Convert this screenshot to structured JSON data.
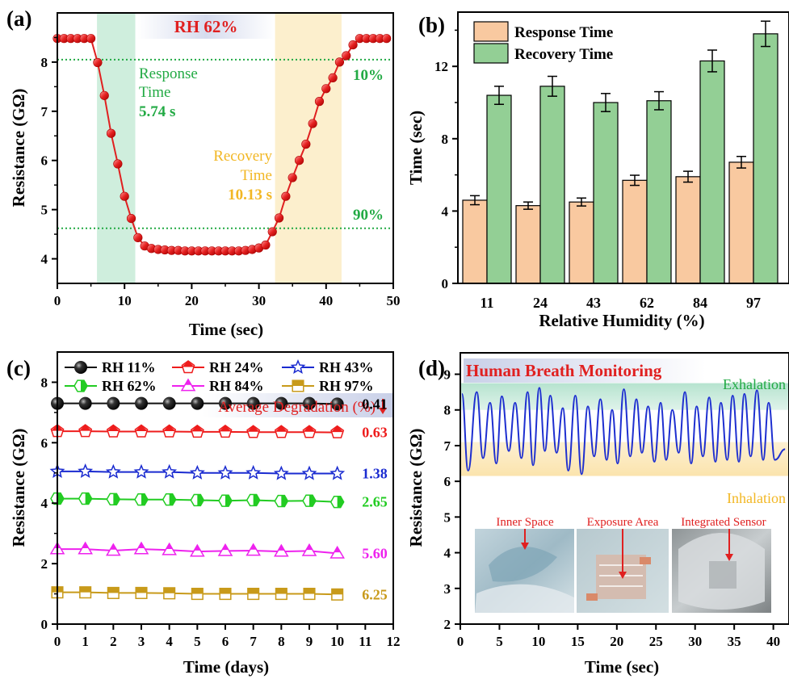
{
  "chart_data": [
    {
      "panel": "(a)",
      "type": "line",
      "xlabel": "Time (sec)",
      "ylabel": "Resistance (GΩ)",
      "xlim": [
        0,
        50
      ],
      "ylim": [
        3.5,
        9.0
      ],
      "x_ticks": [
        "0",
        "10",
        "20",
        "30",
        "40",
        "50"
      ],
      "y_ticks": [
        "4",
        "5",
        "6",
        "7",
        "8"
      ],
      "banner": "RH 62%",
      "response_label": "Response",
      "response_label2": "Time",
      "response_value": "5.74 s",
      "recovery_label": "Recovery",
      "recovery_label2": "Time",
      "recovery_value": "10.13 s",
      "level_10_label": "10%",
      "level_90_label": "90%",
      "level_10": 8.05,
      "level_90": 4.62,
      "response_band": [
        5.9,
        11.6
      ],
      "recovery_band": [
        32.4,
        42.3
      ],
      "series_color": "#e02020",
      "x": [
        0,
        1,
        2,
        3,
        4,
        5,
        6,
        7,
        8,
        9,
        10,
        11,
        12,
        13,
        14,
        15,
        16,
        17,
        18,
        19,
        20,
        21,
        22,
        23,
        24,
        25,
        26,
        27,
        28,
        29,
        30,
        31,
        32,
        33,
        34,
        35,
        36,
        37,
        38,
        39,
        40,
        41,
        42,
        43,
        44,
        45,
        46,
        47,
        48,
        49
      ],
      "y": [
        8.48,
        8.48,
        8.48,
        8.48,
        8.48,
        8.48,
        7.99,
        7.32,
        6.55,
        5.93,
        5.27,
        4.82,
        4.43,
        4.26,
        4.21,
        4.19,
        4.18,
        4.17,
        4.17,
        4.16,
        4.16,
        4.16,
        4.16,
        4.16,
        4.16,
        4.16,
        4.16,
        4.16,
        4.17,
        4.19,
        4.22,
        4.28,
        4.55,
        4.83,
        5.27,
        5.65,
        6.0,
        6.33,
        6.75,
        7.2,
        7.46,
        7.68,
        8.0,
        8.13,
        8.35,
        8.48,
        8.48,
        8.48,
        8.48,
        8.48
      ]
    },
    {
      "panel": "(b)",
      "type": "bar",
      "xlabel": "Relative Humidity (%)",
      "ylabel": "Time (sec)",
      "ylim": [
        0,
        15
      ],
      "y_ticks": [
        "0",
        "4",
        "8",
        "12"
      ],
      "categories": [
        "11",
        "24",
        "43",
        "62",
        "84",
        "97"
      ],
      "series": [
        {
          "name": "Response Time",
          "values": [
            4.6,
            4.3,
            4.5,
            5.7,
            5.9,
            6.7
          ],
          "errors": [
            0.25,
            0.2,
            0.22,
            0.28,
            0.3,
            0.32
          ],
          "color": "#f9c9a0"
        },
        {
          "name": "Recovery Time",
          "values": [
            10.4,
            10.9,
            10.0,
            10.1,
            12.3,
            13.8
          ],
          "errors": [
            0.5,
            0.55,
            0.5,
            0.5,
            0.6,
            0.7
          ],
          "color": "#93cf95"
        }
      ]
    },
    {
      "panel": "(c)",
      "type": "line",
      "xlabel": "Time (days)",
      "ylabel": "Resistance (GΩ)",
      "xlim": [
        0,
        12
      ],
      "ylim": [
        0,
        9.0
      ],
      "x_ticks": [
        "0",
        "1",
        "2",
        "3",
        "4",
        "5",
        "6",
        "7",
        "8",
        "9",
        "10",
        "11",
        "12"
      ],
      "y_ticks": [
        "0",
        "2",
        "4",
        "6",
        "8"
      ],
      "degradation_header": "Average Degradation (%)",
      "series": [
        {
          "name": "RH 11%",
          "color": "#111111",
          "marker": "circle",
          "values": [
            7.3,
            7.3,
            7.3,
            7.3,
            7.3,
            7.3,
            7.3,
            7.3,
            7.3,
            7.3,
            7.28
          ],
          "degradation": "0.41"
        },
        {
          "name": "RH 24%",
          "color": "#ee1c1c",
          "marker": "pentagon",
          "values": [
            6.38,
            6.38,
            6.37,
            6.37,
            6.37,
            6.36,
            6.36,
            6.35,
            6.35,
            6.35,
            6.34
          ],
          "degradation": "0.63"
        },
        {
          "name": "RH 43%",
          "color": "#1a2bd0",
          "marker": "star",
          "values": [
            5.05,
            5.05,
            5.03,
            5.03,
            5.03,
            5.0,
            5.0,
            5.0,
            4.98,
            4.98,
            4.98
          ],
          "degradation": "1.38"
        },
        {
          "name": "RH 62%",
          "color": "#22cc22",
          "marker": "half-hexagon",
          "values": [
            4.15,
            4.15,
            4.13,
            4.12,
            4.12,
            4.1,
            4.08,
            4.1,
            4.07,
            4.08,
            4.04
          ],
          "degradation": "2.65"
        },
        {
          "name": "RH 84%",
          "color": "#ee22ee",
          "marker": "triangle",
          "values": [
            2.48,
            2.48,
            2.43,
            2.48,
            2.45,
            2.4,
            2.42,
            2.43,
            2.4,
            2.42,
            2.34
          ],
          "degradation": "5.60"
        },
        {
          "name": "RH 97%",
          "color": "#c89a1a",
          "marker": "square",
          "values": [
            1.05,
            1.05,
            1.03,
            1.03,
            1.02,
            1.0,
            1.0,
            1.0,
            1.0,
            1.0,
            0.98
          ],
          "degradation": "6.25"
        }
      ]
    },
    {
      "panel": "(d)",
      "type": "line",
      "title": "Human Breath Monitoring",
      "xlabel": "Time (sec)",
      "ylabel": "Resistance (GΩ)",
      "xlim": [
        0,
        42
      ],
      "ylim": [
        2,
        9.6
      ],
      "x_ticks": [
        "0",
        "5",
        "10",
        "15",
        "20",
        "25",
        "30",
        "35",
        "40"
      ],
      "y_ticks": [
        "2",
        "3",
        "4",
        "5",
        "6",
        "7",
        "8",
        "9"
      ],
      "exhalation_label": "Exhalation",
      "inhalation_label": "Inhalation",
      "exhalation_band": [
        8.0,
        8.75
      ],
      "inhalation_band": [
        6.15,
        7.1
      ],
      "series_color": "#1e2fd0",
      "peaks_x": [
        0.2,
        2.1,
        3.8,
        5.3,
        7.0,
        8.6,
        10.1,
        11.5,
        13.1,
        14.7,
        16.3,
        17.9,
        19.4,
        20.9,
        22.5,
        24.0,
        25.6,
        27.1,
        28.7,
        30.2,
        31.8,
        33.3,
        34.8,
        36.3,
        37.9,
        39.4
      ],
      "peaks_y": [
        8.45,
        8.5,
        8.2,
        8.38,
        8.2,
        8.5,
        8.62,
        8.4,
        8.05,
        8.4,
        8.1,
        8.3,
        8.0,
        8.58,
        8.3,
        8.1,
        8.2,
        8.0,
        8.5,
        8.1,
        8.35,
        8.2,
        8.4,
        8.45,
        8.55,
        8.2
      ],
      "valleys_x": [
        1.0,
        2.9,
        4.6,
        6.2,
        7.8,
        9.3,
        10.8,
        12.3,
        13.8,
        15.5,
        17.1,
        18.7,
        20.1,
        21.7,
        23.2,
        24.8,
        26.3,
        27.9,
        29.5,
        31.0,
        32.6,
        34.1,
        35.6,
        37.1,
        38.7,
        40.2
      ],
      "valleys_y": [
        6.3,
        6.65,
        6.5,
        6.85,
        6.65,
        6.45,
        6.85,
        6.8,
        6.3,
        6.2,
        6.7,
        6.6,
        6.5,
        6.7,
        6.8,
        6.55,
        6.6,
        6.8,
        6.5,
        6.7,
        6.55,
        6.6,
        6.55,
        6.7,
        6.6,
        6.6
      ],
      "end": [
        41.5,
        6.9
      ],
      "photo_labels": [
        "Inner Space",
        "Exposure Area",
        "Integrated Sensor"
      ]
    }
  ]
}
